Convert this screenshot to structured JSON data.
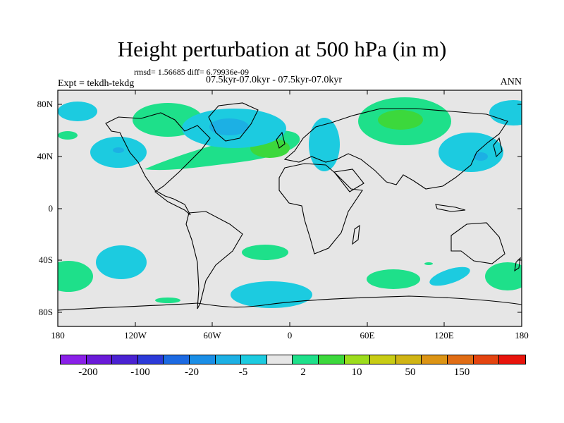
{
  "title": "Height perturbation at 500 hPa (in m)",
  "stats": "rmsd= 1.56685 diff= 6.79936e-09",
  "experiment": "Expt = tekdh-tekdg",
  "period": "07.5kyr-07.0kyr - 07.5kyr-07.0kyr",
  "season": "ANN",
  "y_labels": [
    "80N",
    "40N",
    "0",
    "40S",
    "80S"
  ],
  "x_labels": [
    "180",
    "120W",
    "60W",
    "0",
    "60E",
    "120E",
    "180"
  ],
  "colorbar": {
    "colors": [
      "#8a20e8",
      "#6a1ad8",
      "#4a22d2",
      "#2c3ad8",
      "#1c6ae2",
      "#1a8ee6",
      "#1cb0e4",
      "#1ccbe0",
      "#e6e6e6",
      "#1ee08a",
      "#3cd83c",
      "#9cdc1c",
      "#c8cc14",
      "#d0b414",
      "#dc9414",
      "#e06c14",
      "#e44410",
      "#e8140c"
    ],
    "labels": [
      "-200",
      "-100",
      "-20",
      "-5",
      "2",
      "10",
      "50",
      "150"
    ]
  }
}
